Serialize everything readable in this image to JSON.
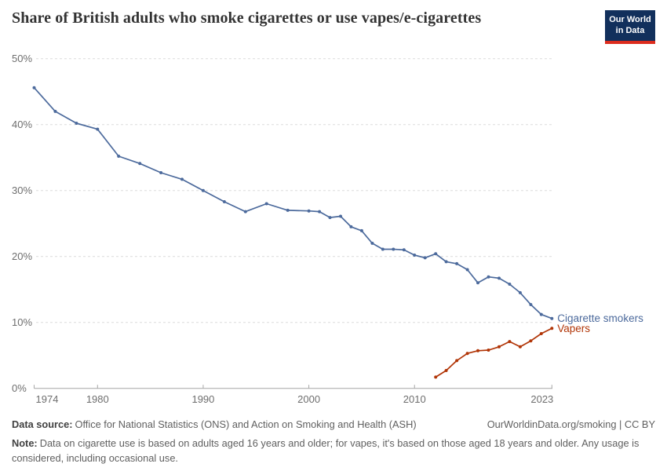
{
  "header": {
    "title": "Share of British adults who smoke cigarettes or use vapes/e-cigarettes",
    "logo": {
      "line1": "Our World",
      "line2": "in Data",
      "bg_color": "#12305C",
      "bar_color": "#DC2C1E"
    }
  },
  "chart_data": {
    "type": "line",
    "title": "Share of British adults who smoke cigarettes or use vapes/e-cigarettes",
    "xlabel": "",
    "ylabel": "",
    "xlim": [
      1974,
      2023
    ],
    "ylim": [
      0,
      50
    ],
    "yticks": [
      0,
      10,
      20,
      30,
      40,
      50
    ],
    "ytick_suffix": "%",
    "xticks": [
      1974,
      1980,
      1990,
      2000,
      2010,
      2023
    ],
    "grid": "horizontal-dashed",
    "legend_position": "end-of-line-labels",
    "colors": {
      "grid": "#dcdcdc",
      "axis": "#a6a6a6",
      "tick_text": "#6e6e6e"
    },
    "series": [
      {
        "name": "Cigarette smokers",
        "color": "#4C6A9C",
        "points": [
          [
            1974,
            45.6
          ],
          [
            1976,
            42.0
          ],
          [
            1978,
            40.2
          ],
          [
            1980,
            39.3
          ],
          [
            1982,
            35.2
          ],
          [
            1984,
            34.1
          ],
          [
            1986,
            32.7
          ],
          [
            1988,
            31.7
          ],
          [
            1990,
            30.0
          ],
          [
            1992,
            28.3
          ],
          [
            1994,
            26.8
          ],
          [
            1996,
            28.0
          ],
          [
            1998,
            27.0
          ],
          [
            2000,
            26.9
          ],
          [
            2001,
            26.8
          ],
          [
            2002,
            25.9
          ],
          [
            2003,
            26.1
          ],
          [
            2004,
            24.5
          ],
          [
            2005,
            23.9
          ],
          [
            2006,
            22.0
          ],
          [
            2007,
            21.1
          ],
          [
            2008,
            21.1
          ],
          [
            2009,
            21.0
          ],
          [
            2010,
            20.2
          ],
          [
            2011,
            19.8
          ],
          [
            2012,
            20.4
          ],
          [
            2013,
            19.2
          ],
          [
            2014,
            18.9
          ],
          [
            2015,
            18.0
          ],
          [
            2016,
            16.0
          ],
          [
            2017,
            16.9
          ],
          [
            2018,
            16.7
          ],
          [
            2019,
            15.8
          ],
          [
            2020,
            14.5
          ],
          [
            2021,
            12.7
          ],
          [
            2022,
            11.2
          ],
          [
            2023,
            10.6
          ]
        ]
      },
      {
        "name": "Vapers",
        "color": "#B13507",
        "points": [
          [
            2012,
            1.7
          ],
          [
            2013,
            2.7
          ],
          [
            2014,
            4.2
          ],
          [
            2015,
            5.3
          ],
          [
            2016,
            5.7
          ],
          [
            2017,
            5.8
          ],
          [
            2018,
            6.3
          ],
          [
            2019,
            7.1
          ],
          [
            2020,
            6.3
          ],
          [
            2021,
            7.2
          ],
          [
            2022,
            8.3
          ],
          [
            2023,
            9.1
          ]
        ]
      }
    ]
  },
  "footer": {
    "source_label": "Data source:",
    "source_text": "Office for National Statistics (ONS) and Action on Smoking and Health (ASH)",
    "credit": "OurWorldinData.org/smoking | CC BY",
    "note_label": "Note:",
    "note_text": "Data on cigarette use is based on adults aged 16 years and older; for vapes, it's based on those aged 18 years and older. Any usage is considered, including occasional use."
  }
}
